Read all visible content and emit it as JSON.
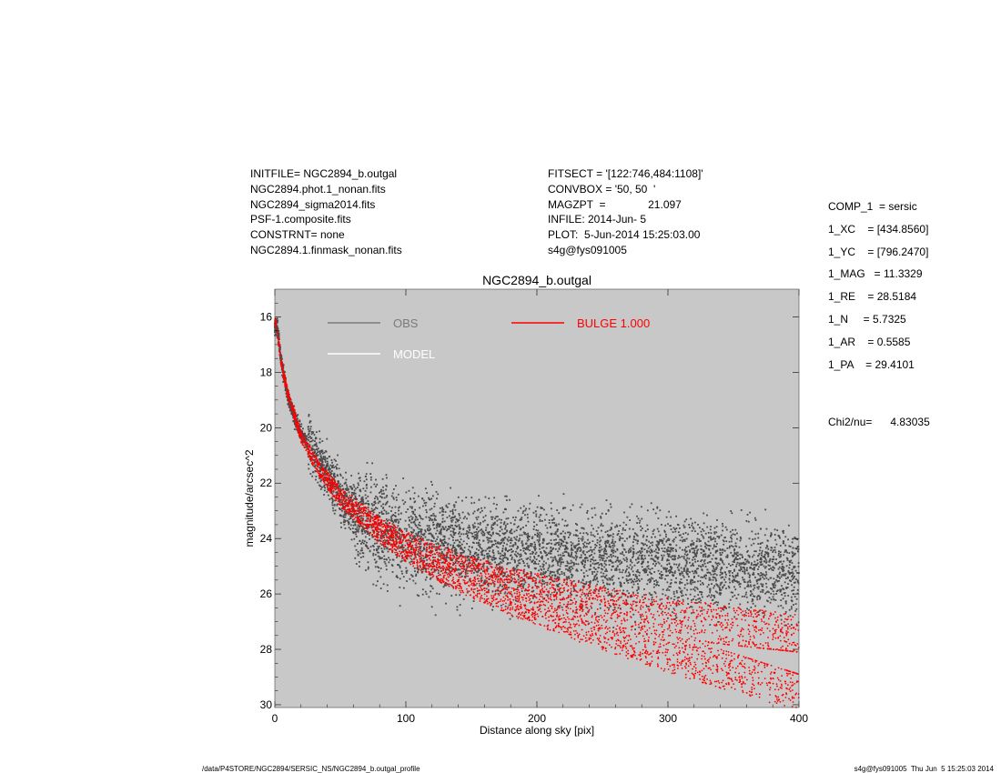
{
  "header_left": [
    "INITFILE= NGC2894_b.outgal",
    "NGC2894.phot.1_nonan.fits",
    "NGC2894_sigma2014.fits",
    "PSF-1.composite.fits",
    "CONSTRNT= none",
    "NGC2894.1.finmask_nonan.fits"
  ],
  "header_middle": [
    "FITSECT = '[122:746,484:1108]'",
    "CONVBOX = '50, 50  '",
    "MAGZPT  =              21.097",
    "INFILE: 2014-Jun- 5",
    "PLOT:  5-Jun-2014 15:25:03.00",
    "s4g@fys091005"
  ],
  "params": [
    "COMP_1  = sersic",
    "1_XC    = [434.8560]",
    "1_YC    = [796.2470]",
    "1_MAG   = 11.3329",
    "1_RE    = 28.5184",
    "1_N     = 5.7325",
    "1_AR    = 0.5585",
    "1_PA    = 29.4101"
  ],
  "chi2": "Chi2/nu=      4.83035",
  "footer": {
    "left": "/data/P4STORE/NGC2894/SERSIC_NS/NGC2894_b.outgal_profile",
    "right": "s4g@fys091005  Thu Jun  5 15:25:03 2014"
  },
  "colors": {
    "background": "#c8c8c8",
    "obs": "#4a4a4a",
    "bulge": "#ff0000",
    "model": "#ffffff",
    "obs_legend": "#7a7a7a"
  },
  "chart_data": {
    "type": "scatter",
    "title": "NGC2894_b.outgal",
    "xlabel": "Distance along sky [pix]",
    "ylabel": "magnitude/arcsec^2",
    "xlim": [
      0,
      400
    ],
    "ylim": [
      30.1,
      15.0
    ],
    "y_inverted": true,
    "x_ticks": [
      0,
      100,
      200,
      300,
      400
    ],
    "y_ticks": [
      16,
      18,
      20,
      22,
      24,
      26,
      28,
      30
    ],
    "grid": false,
    "legend": [
      {
        "label": "OBS",
        "color": "#7a7a7a"
      },
      {
        "label": "BULGE  1.000",
        "color": "#ff0000"
      },
      {
        "label": "MODEL",
        "color": "#ffffff"
      }
    ],
    "series": [
      {
        "name": "OBS",
        "x": [
          2,
          5,
          10,
          15,
          20,
          30,
          40,
          50,
          60,
          70,
          80,
          100,
          120,
          150,
          180,
          200,
          230,
          260,
          300,
          330,
          360,
          400
        ],
        "y": [
          16.4,
          17.6,
          18.9,
          19.6,
          20.2,
          20.9,
          21.6,
          22.4,
          23.0,
          23.4,
          23.7,
          24.0,
          24.2,
          24.4,
          24.5,
          24.6,
          24.7,
          24.8,
          24.9,
          25.0,
          25.1,
          25.2
        ]
      },
      {
        "name": "BULGE  1.000",
        "x": [
          1,
          5,
          10,
          20,
          30,
          40,
          50,
          60,
          80,
          100,
          120,
          150,
          180,
          200,
          250,
          300,
          320,
          350,
          400
        ],
        "y": [
          16.2,
          17.7,
          18.8,
          20.3,
          21.2,
          21.9,
          22.5,
          22.9,
          23.7,
          24.3,
          24.8,
          25.4,
          25.9,
          26.2,
          26.9,
          27.5,
          27.7,
          28.0,
          28.5
        ]
      }
    ]
  }
}
